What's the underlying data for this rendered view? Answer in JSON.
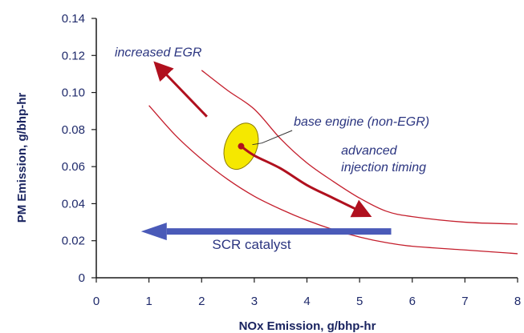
{
  "chart_data": {
    "type": "line",
    "xlabel": "NOx Emission, g/bhp-hr",
    "ylabel": "PM Emission, g/bhp-hr",
    "xlim": [
      0,
      8
    ],
    "ylim": [
      0,
      0.14
    ],
    "x_ticks": [
      0,
      1,
      2,
      3,
      4,
      5,
      6,
      7,
      8
    ],
    "y_ticks": [
      0,
      0.02,
      0.04,
      0.06,
      0.08,
      0.1,
      0.12,
      0.14
    ],
    "x_tick_labels": [
      "0",
      "1",
      "2",
      "3",
      "4",
      "5",
      "6",
      "7",
      "8"
    ],
    "y_tick_labels": [
      "0",
      "0.02",
      "0.04",
      "0.06",
      "0.08",
      "0.10",
      "0.12",
      "0.14"
    ],
    "grid": false,
    "series": [
      {
        "x": [
          2.0,
          2.5,
          3.0,
          3.5,
          4.0,
          4.5,
          5.0,
          5.5,
          6.0,
          7.0,
          8.0
        ],
        "y": [
          0.112,
          0.101,
          0.091,
          0.075,
          0.062,
          0.052,
          0.043,
          0.036,
          0.033,
          0.03,
          0.029
        ]
      },
      {
        "x": [
          1.0,
          1.5,
          2.0,
          2.5,
          3.0,
          3.5,
          4.0,
          4.5,
          5.0,
          5.5,
          6.0,
          7.0,
          8.0
        ],
        "y": [
          0.093,
          0.077,
          0.064,
          0.053,
          0.044,
          0.037,
          0.031,
          0.026,
          0.022,
          0.019,
          0.017,
          0.015,
          0.013
        ]
      }
    ],
    "arrows": [
      {
        "label": "increased EGR",
        "from": [
          2.1,
          0.087
        ],
        "to": [
          1.15,
          0.115
        ],
        "color": "#b0101e"
      },
      {
        "label": "advanced injection timing",
        "path_x": [
          2.75,
          3.0,
          3.5,
          4.0,
          4.5,
          5.15
        ],
        "path_y": [
          0.071,
          0.066,
          0.059,
          0.05,
          0.043,
          0.034
        ],
        "color": "#b0101e"
      },
      {
        "label": "SCR catalyst",
        "from": [
          5.6,
          0.025
        ],
        "to": [
          0.85,
          0.025
        ],
        "color": "#4a5ab8"
      }
    ],
    "base_engine": {
      "label": "base engine (non-EGR)",
      "x": 2.75,
      "y": 0.071,
      "rx": 0.3,
      "ry": 0.013,
      "fill": "#f5e800",
      "stroke": "#8a7a00"
    },
    "annotations": [
      {
        "text": "increased EGR",
        "x": 0.35,
        "y": 0.1195
      },
      {
        "text": "base engine (non-EGR)",
        "x": 3.75,
        "y": 0.082
      },
      {
        "text": "advanced",
        "x": 4.65,
        "y": 0.0665
      },
      {
        "text": "injection timing",
        "x": 4.65,
        "y": 0.0575
      },
      {
        "text": "SCR catalyst",
        "x": 2.2,
        "y": 0.0155
      }
    ],
    "colors": {
      "curve": "#c41e2c",
      "arrow": "#b0101e",
      "scr_arrow": "#4a5ab8",
      "text": "#2b3580",
      "axis": "#1a1a1a"
    }
  }
}
